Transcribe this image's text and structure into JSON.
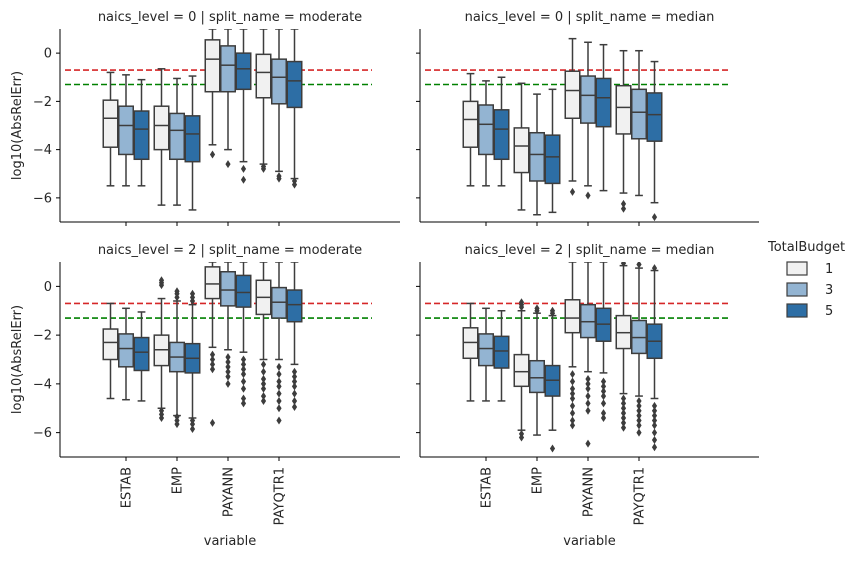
{
  "chart_data": {
    "type": "box",
    "ylabel": "log10(AbsRelErr)",
    "xlabel": "variable",
    "ylim": [
      -7,
      1
    ],
    "yticks": [
      0,
      -2,
      -4,
      -6
    ],
    "categories": [
      "ESTAB",
      "EMP",
      "PAYANN",
      "PAYQTR1"
    ],
    "reference_lines": [
      {
        "value": -0.7,
        "color": "#d62728",
        "style": "dashed"
      },
      {
        "value": -1.3,
        "color": "#008000",
        "style": "dashed"
      }
    ],
    "legend": {
      "title": "TotalBudget",
      "entries": [
        {
          "label": "1",
          "color": "#f1f1f1"
        },
        {
          "label": "3",
          "color": "#93b4d2"
        },
        {
          "label": "5",
          "color": "#2d6ea5"
        }
      ]
    },
    "panels": [
      {
        "title": "naics_level = 0 | split_name = moderate",
        "boxes": [
          {
            "category": "ESTAB",
            "budget": "1",
            "whislo": -5.5,
            "q1": -3.9,
            "med": -2.7,
            "q3": -1.95,
            "whishi": -0.8,
            "fliers": []
          },
          {
            "category": "ESTAB",
            "budget": "3",
            "whislo": -5.5,
            "q1": -4.2,
            "med": -3.0,
            "q3": -2.2,
            "whishi": -0.9,
            "fliers": []
          },
          {
            "category": "ESTAB",
            "budget": "5",
            "whislo": -5.5,
            "q1": -4.4,
            "med": -3.15,
            "q3": -2.4,
            "whishi": -1.1,
            "fliers": []
          },
          {
            "category": "EMP",
            "budget": "1",
            "whislo": -6.3,
            "q1": -4.0,
            "med": -3.0,
            "q3": -2.2,
            "whishi": -0.65,
            "fliers": []
          },
          {
            "category": "EMP",
            "budget": "3",
            "whislo": -6.3,
            "q1": -4.4,
            "med": -3.2,
            "q3": -2.5,
            "whishi": -1.05,
            "fliers": []
          },
          {
            "category": "EMP",
            "budget": "5",
            "whislo": -6.5,
            "q1": -4.5,
            "med": -3.35,
            "q3": -2.6,
            "whishi": -0.95,
            "fliers": []
          },
          {
            "category": "PAYANN",
            "budget": "1",
            "whislo": -3.8,
            "q1": -1.6,
            "med": -0.25,
            "q3": 0.55,
            "whishi": 1.0,
            "fliers": [
              -4.2
            ]
          },
          {
            "category": "PAYANN",
            "budget": "3",
            "whislo": -4.0,
            "q1": -1.6,
            "med": -0.5,
            "q3": 0.3,
            "whishi": 1.0,
            "fliers": [
              -4.6
            ]
          },
          {
            "category": "PAYANN",
            "budget": "5",
            "whislo": -4.5,
            "q1": -1.5,
            "med": -0.65,
            "q3": 0.0,
            "whishi": 1.0,
            "fliers": [
              -4.8,
              -5.25
            ]
          },
          {
            "category": "PAYQTR1",
            "budget": "1",
            "whislo": -4.6,
            "q1": -1.85,
            "med": -0.8,
            "q3": -0.05,
            "whishi": 1.0,
            "fliers": [
              -4.7,
              -4.8
            ]
          },
          {
            "category": "PAYQTR1",
            "budget": "3",
            "whislo": -4.9,
            "q1": -2.1,
            "med": -1.0,
            "q3": -0.25,
            "whishi": 1.0,
            "fliers": [
              -5.1,
              -5.2
            ]
          },
          {
            "category": "PAYQTR1",
            "budget": "5",
            "whislo": -5.2,
            "q1": -2.25,
            "med": -1.15,
            "q3": -0.35,
            "whishi": 1.0,
            "fliers": [
              -5.3,
              -5.45
            ]
          }
        ]
      },
      {
        "title": "naics_level = 0 | split_name = median",
        "boxes": [
          {
            "category": "ESTAB",
            "budget": "1",
            "whislo": -5.5,
            "q1": -3.9,
            "med": -2.75,
            "q3": -2.0,
            "whishi": -0.85,
            "fliers": []
          },
          {
            "category": "ESTAB",
            "budget": "3",
            "whislo": -5.5,
            "q1": -4.2,
            "med": -2.95,
            "q3": -2.15,
            "whishi": -1.15,
            "fliers": []
          },
          {
            "category": "ESTAB",
            "budget": "5",
            "whislo": -5.5,
            "q1": -4.4,
            "med": -3.15,
            "q3": -2.35,
            "whishi": -1.0,
            "fliers": []
          },
          {
            "category": "EMP",
            "budget": "1",
            "whislo": -6.5,
            "q1": -4.95,
            "med": -3.85,
            "q3": -3.1,
            "whishi": -1.25,
            "fliers": []
          },
          {
            "category": "EMP",
            "budget": "3",
            "whislo": -6.7,
            "q1": -5.3,
            "med": -4.2,
            "q3": -3.3,
            "whishi": -1.7,
            "fliers": []
          },
          {
            "category": "EMP",
            "budget": "5",
            "whislo": -6.6,
            "q1": -5.4,
            "med": -4.3,
            "q3": -3.4,
            "whishi": -1.5,
            "fliers": []
          },
          {
            "category": "PAYANN",
            "budget": "1",
            "whislo": -5.3,
            "q1": -2.7,
            "med": -1.55,
            "q3": -0.75,
            "whishi": 0.6,
            "fliers": [
              -5.75
            ]
          },
          {
            "category": "PAYANN",
            "budget": "3",
            "whislo": -5.5,
            "q1": -2.9,
            "med": -1.75,
            "q3": -0.95,
            "whishi": 0.45,
            "fliers": [
              -5.9
            ]
          },
          {
            "category": "PAYANN",
            "budget": "5",
            "whislo": -5.7,
            "q1": -3.05,
            "med": -1.85,
            "q3": -1.05,
            "whishi": 0.35,
            "fliers": []
          },
          {
            "category": "PAYQTR1",
            "budget": "1",
            "whislo": -5.8,
            "q1": -3.35,
            "med": -2.25,
            "q3": -1.35,
            "whishi": 0.1,
            "fliers": [
              -6.25,
              -6.45
            ]
          },
          {
            "category": "PAYQTR1",
            "budget": "3",
            "whislo": -5.9,
            "q1": -3.55,
            "med": -2.45,
            "q3": -1.5,
            "whishi": 0.1,
            "fliers": []
          },
          {
            "category": "PAYQTR1",
            "budget": "5",
            "whislo": -6.2,
            "q1": -3.65,
            "med": -2.55,
            "q3": -1.65,
            "whishi": -0.35,
            "fliers": [
              -6.8
            ]
          }
        ]
      },
      {
        "title": "naics_level = 2 | split_name = moderate",
        "boxes": [
          {
            "category": "ESTAB",
            "budget": "1",
            "whislo": -4.6,
            "q1": -3.0,
            "med": -2.3,
            "q3": -1.75,
            "whishi": -0.7,
            "fliers": []
          },
          {
            "category": "ESTAB",
            "budget": "3",
            "whislo": -4.65,
            "q1": -3.3,
            "med": -2.55,
            "q3": -1.95,
            "whishi": -0.9,
            "fliers": []
          },
          {
            "category": "ESTAB",
            "budget": "5",
            "whislo": -4.7,
            "q1": -3.45,
            "med": -2.7,
            "q3": -2.1,
            "whishi": -1.05,
            "fliers": []
          },
          {
            "category": "EMP",
            "budget": "1",
            "whislo": -5.0,
            "q1": -3.25,
            "med": -2.6,
            "q3": -2.0,
            "whishi": -0.5,
            "fliers": [
              -5.1,
              -5.25,
              -5.4,
              0.05,
              0.15,
              0.25
            ]
          },
          {
            "category": "EMP",
            "budget": "3",
            "whislo": -5.3,
            "q1": -3.5,
            "med": -2.9,
            "q3": -2.3,
            "whishi": -0.6,
            "fliers": [
              -5.35,
              -5.5,
              -5.65,
              -0.45,
              -0.3,
              -0.2
            ]
          },
          {
            "category": "EMP",
            "budget": "5",
            "whislo": -5.4,
            "q1": -3.55,
            "med": -2.95,
            "q3": -2.35,
            "whishi": -0.75,
            "fliers": [
              -5.5,
              -5.65,
              -5.85,
              -0.6,
              -0.45,
              -0.3
            ]
          },
          {
            "category": "PAYANN",
            "budget": "1",
            "whislo": -2.5,
            "q1": -0.5,
            "med": 0.1,
            "q3": 0.8,
            "whishi": 1.0,
            "fliers": [
              -2.8,
              -3.0,
              -3.2,
              -3.4,
              -5.6
            ]
          },
          {
            "category": "PAYANN",
            "budget": "3",
            "whislo": -2.6,
            "q1": -0.8,
            "med": -0.15,
            "q3": 0.6,
            "whishi": 1.0,
            "fliers": [
              -2.9,
              -3.1,
              -3.3,
              -3.5,
              -3.7,
              -4.0
            ]
          },
          {
            "category": "PAYANN",
            "budget": "5",
            "whislo": -2.7,
            "q1": -0.85,
            "med": -0.25,
            "q3": 0.45,
            "whishi": 1.0,
            "fliers": [
              -3.0,
              -3.2,
              -3.4,
              -3.6,
              -3.9,
              -4.2,
              -4.6,
              -4.8
            ]
          },
          {
            "category": "PAYQTR1",
            "budget": "1",
            "whislo": -3.0,
            "q1": -1.15,
            "med": -0.45,
            "q3": 0.25,
            "whishi": 1.0,
            "fliers": [
              -3.2,
              -3.5,
              -3.8,
              -4.0,
              -4.2,
              -4.5,
              -4.7
            ]
          },
          {
            "category": "PAYQTR1",
            "budget": "3",
            "whislo": -3.0,
            "q1": -1.3,
            "med": -0.65,
            "q3": -0.05,
            "whishi": 1.0,
            "fliers": [
              -3.3,
              -3.6,
              -3.9,
              -4.1,
              -4.4,
              -4.7,
              -5.0,
              -5.5
            ]
          },
          {
            "category": "PAYQTR1",
            "budget": "5",
            "whislo": -3.2,
            "q1": -1.45,
            "med": -0.75,
            "q3": -0.15,
            "whishi": 1.0,
            "fliers": [
              -3.5,
              -3.7,
              -3.9,
              -4.1,
              -4.4,
              -4.7,
              -4.95
            ]
          }
        ]
      },
      {
        "title": "naics_level = 2 | split_name = median",
        "boxes": [
          {
            "category": "ESTAB",
            "budget": "1",
            "whislo": -4.7,
            "q1": -2.95,
            "med": -2.3,
            "q3": -1.7,
            "whishi": -0.7,
            "fliers": []
          },
          {
            "category": "ESTAB",
            "budget": "3",
            "whislo": -4.7,
            "q1": -3.25,
            "med": -2.55,
            "q3": -1.95,
            "whishi": -0.9,
            "fliers": []
          },
          {
            "category": "ESTAB",
            "budget": "5",
            "whislo": -4.7,
            "q1": -3.35,
            "med": -2.65,
            "q3": -2.05,
            "whishi": -1.0,
            "fliers": []
          },
          {
            "category": "EMP",
            "budget": "1",
            "whislo": -5.9,
            "q1": -4.1,
            "med": -3.5,
            "q3": -2.8,
            "whishi": -1.0,
            "fliers": [
              -6.05,
              -6.2,
              -0.65,
              -0.75,
              -0.85
            ]
          },
          {
            "category": "EMP",
            "budget": "3",
            "whislo": -6.1,
            "q1": -4.35,
            "med": -3.75,
            "q3": -3.05,
            "whishi": -1.1,
            "fliers": [
              -1.0,
              -0.9
            ]
          },
          {
            "category": "EMP",
            "budget": "5",
            "whislo": -5.9,
            "q1": -4.5,
            "med": -3.85,
            "q3": -3.25,
            "whishi": -1.2,
            "fliers": [
              -6.65,
              -1.1,
              -1.0
            ]
          },
          {
            "category": "PAYANN",
            "budget": "1",
            "whislo": -3.3,
            "q1": -1.9,
            "med": -1.3,
            "q3": -0.55,
            "whishi": 1.0,
            "fliers": [
              -3.6,
              -3.9,
              -4.2,
              -4.4,
              -4.6,
              -4.9,
              -5.2,
              -5.5,
              -5.7
            ]
          },
          {
            "category": "PAYANN",
            "budget": "3",
            "whislo": -3.5,
            "q1": -2.1,
            "med": -1.45,
            "q3": -0.75,
            "whishi": 1.0,
            "fliers": [
              -3.8,
              -4.0,
              -4.2,
              -4.5,
              -4.8,
              -5.1,
              -6.45
            ]
          },
          {
            "category": "PAYANN",
            "budget": "5",
            "whislo": -3.55,
            "q1": -2.25,
            "med": -1.55,
            "q3": -0.9,
            "whishi": 1.0,
            "fliers": [
              -3.9,
              -4.1,
              -4.3,
              -4.5,
              -4.8,
              -5.2,
              -5.4
            ]
          },
          {
            "category": "PAYQTR1",
            "budget": "1",
            "whislo": -4.4,
            "q1": -2.55,
            "med": -1.9,
            "q3": -1.2,
            "whishi": 0.85,
            "fliers": [
              -4.6,
              -4.8,
              -5.0,
              -5.2,
              -5.4,
              -5.6,
              -5.8,
              0.95
            ]
          },
          {
            "category": "PAYQTR1",
            "budget": "3",
            "whislo": -4.5,
            "q1": -2.75,
            "med": -2.1,
            "q3": -1.4,
            "whishi": 0.75,
            "fliers": [
              -4.7,
              -4.9,
              -5.1,
              -5.3,
              -5.5,
              -5.7,
              -6.0,
              0.9
            ]
          },
          {
            "category": "PAYQTR1",
            "budget": "5",
            "whislo": -4.6,
            "q1": -2.95,
            "med": -2.25,
            "q3": -1.55,
            "whishi": 0.65,
            "fliers": [
              -4.9,
              -5.1,
              -5.3,
              -5.5,
              -5.7,
              -6.0,
              -6.3,
              -6.6,
              0.75
            ]
          }
        ]
      }
    ]
  }
}
